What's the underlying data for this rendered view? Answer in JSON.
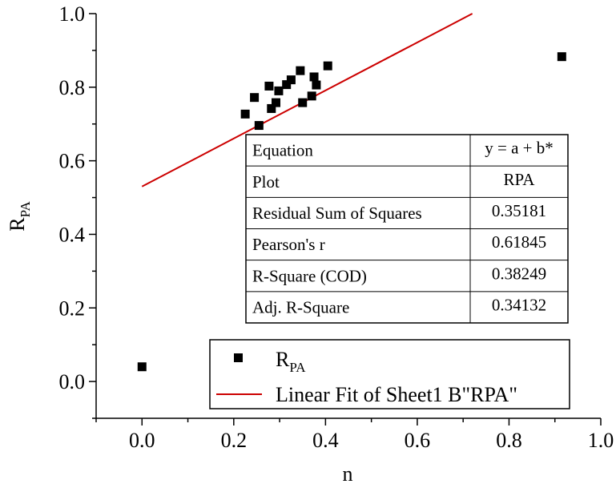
{
  "chart_data": {
    "type": "scatter",
    "xlabel": "n",
    "ylabel": {
      "main": "R",
      "sub": "PA"
    },
    "xlim": [
      -0.1,
      1.0
    ],
    "ylim": [
      -0.1,
      1.0
    ],
    "xticks": [
      "0.0",
      "0.2",
      "0.4",
      "0.6",
      "0.8",
      "1.0"
    ],
    "yticks": [
      "0.0",
      "0.2",
      "0.4",
      "0.6",
      "0.8",
      "1.0"
    ],
    "series": [
      {
        "name": "R_PA",
        "points": [
          [
            0.0,
            0.04
          ],
          [
            0.225,
            0.727
          ],
          [
            0.245,
            0.772
          ],
          [
            0.255,
            0.696
          ],
          [
            0.277,
            0.803
          ],
          [
            0.282,
            0.742
          ],
          [
            0.292,
            0.758
          ],
          [
            0.298,
            0.79
          ],
          [
            0.315,
            0.807
          ],
          [
            0.325,
            0.82
          ],
          [
            0.345,
            0.845
          ],
          [
            0.35,
            0.758
          ],
          [
            0.37,
            0.776
          ],
          [
            0.375,
            0.828
          ],
          [
            0.38,
            0.806
          ],
          [
            0.405,
            0.858
          ],
          [
            0.915,
            0.883
          ]
        ]
      }
    ],
    "fit": {
      "name": "Linear Fit of Sheet1 B\"RPA\"",
      "color": "#cc0000",
      "x_range": [
        0.0,
        0.72
      ],
      "intercept": 0.53,
      "slope": 0.6528
    },
    "legend": {
      "position": "bottom-center",
      "scatter_label": {
        "main": "R",
        "sub": "PA"
      },
      "fit_label": "Linear Fit of Sheet1 B\"RPA\""
    },
    "stats_table": {
      "rows": [
        {
          "label": "Equation",
          "value": "y = a + b*"
        },
        {
          "label": "Plot",
          "value": "RPA"
        },
        {
          "label": "Residual Sum of Squares",
          "value": "0.35181"
        },
        {
          "label": "Pearson's r",
          "value": "0.61845"
        },
        {
          "label": "R-Square (COD)",
          "value": "0.38249"
        },
        {
          "label": "Adj. R-Square",
          "value": "0.34132"
        }
      ]
    }
  }
}
